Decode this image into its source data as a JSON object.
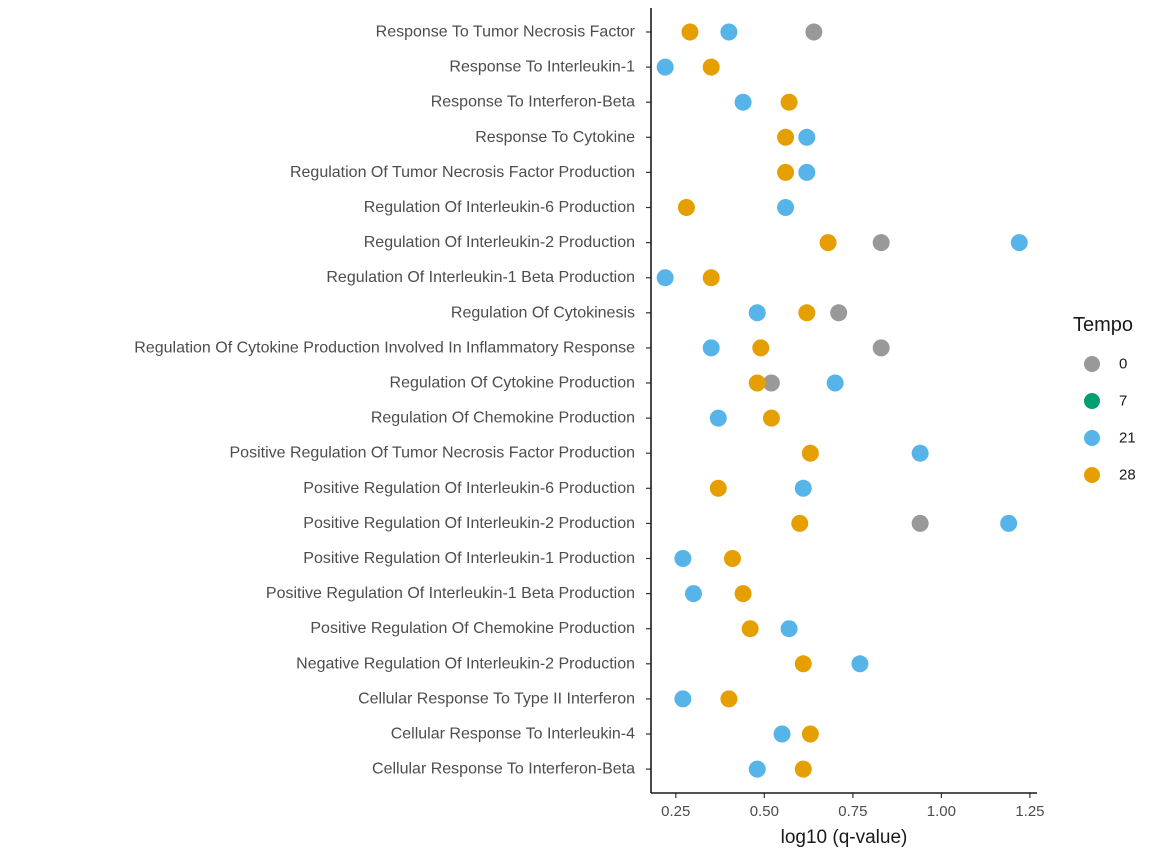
{
  "chart_data": {
    "type": "scatter",
    "xlabel": "log10 (q-value)",
    "xlim": [
      0.18,
      1.27
    ],
    "xticks": [
      0.25,
      0.5,
      0.75,
      1.0,
      1.25
    ],
    "xtick_labels": [
      "0.25",
      "0.50",
      "0.75",
      "1.00",
      "1.25"
    ],
    "grid": false,
    "legend": {
      "title": "Tempo",
      "position": "right",
      "entries": [
        "0",
        "7",
        "21",
        "28"
      ]
    },
    "colors": {
      "0": "#999999",
      "7": "#009E73",
      "21": "#56B4E9",
      "28": "#E69F00"
    },
    "categories": [
      "Response To Tumor Necrosis Factor",
      "Response To Interleukin-1",
      "Response To Interferon-Beta",
      "Response To Cytokine",
      "Regulation Of Tumor Necrosis Factor Production",
      "Regulation Of Interleukin-6 Production",
      "Regulation Of Interleukin-2 Production",
      "Regulation Of Interleukin-1 Beta Production",
      "Regulation Of Cytokinesis",
      "Regulation Of Cytokine Production Involved In Inflammatory Response",
      "Regulation Of Cytokine Production",
      "Regulation Of Chemokine Production",
      "Positive Regulation Of Tumor Necrosis Factor Production",
      "Positive Regulation Of Interleukin-6 Production",
      "Positive Regulation Of Interleukin-2 Production",
      "Positive Regulation Of Interleukin-1 Production",
      "Positive Regulation Of Interleukin-1 Beta Production",
      "Positive Regulation Of Chemokine Production",
      "Negative Regulation Of Interleukin-2 Production",
      "Cellular Response To Type II Interferon",
      "Cellular Response To Interleukin-4",
      "Cellular Response To Interferon-Beta"
    ],
    "series": [
      {
        "name": "0",
        "values": [
          0.64,
          null,
          null,
          null,
          null,
          null,
          0.83,
          null,
          0.71,
          0.83,
          0.52,
          null,
          null,
          null,
          0.94,
          null,
          null,
          null,
          null,
          null,
          null,
          null
        ]
      },
      {
        "name": "7",
        "values": [
          null,
          null,
          null,
          null,
          null,
          null,
          null,
          null,
          null,
          null,
          null,
          null,
          null,
          null,
          null,
          null,
          null,
          null,
          null,
          null,
          null,
          null
        ]
      },
      {
        "name": "21",
        "values": [
          0.4,
          0.22,
          0.44,
          0.62,
          0.62,
          0.56,
          1.22,
          0.22,
          0.48,
          0.35,
          0.7,
          0.37,
          0.94,
          0.61,
          1.19,
          0.27,
          0.3,
          0.57,
          0.77,
          0.27,
          0.55,
          0.48
        ]
      },
      {
        "name": "28",
        "values": [
          0.29,
          0.35,
          0.57,
          0.56,
          0.56,
          0.28,
          0.68,
          0.35,
          0.62,
          0.49,
          0.48,
          0.52,
          0.63,
          0.37,
          0.6,
          0.41,
          0.44,
          0.46,
          0.61,
          0.4,
          0.63,
          0.61
        ]
      }
    ]
  }
}
